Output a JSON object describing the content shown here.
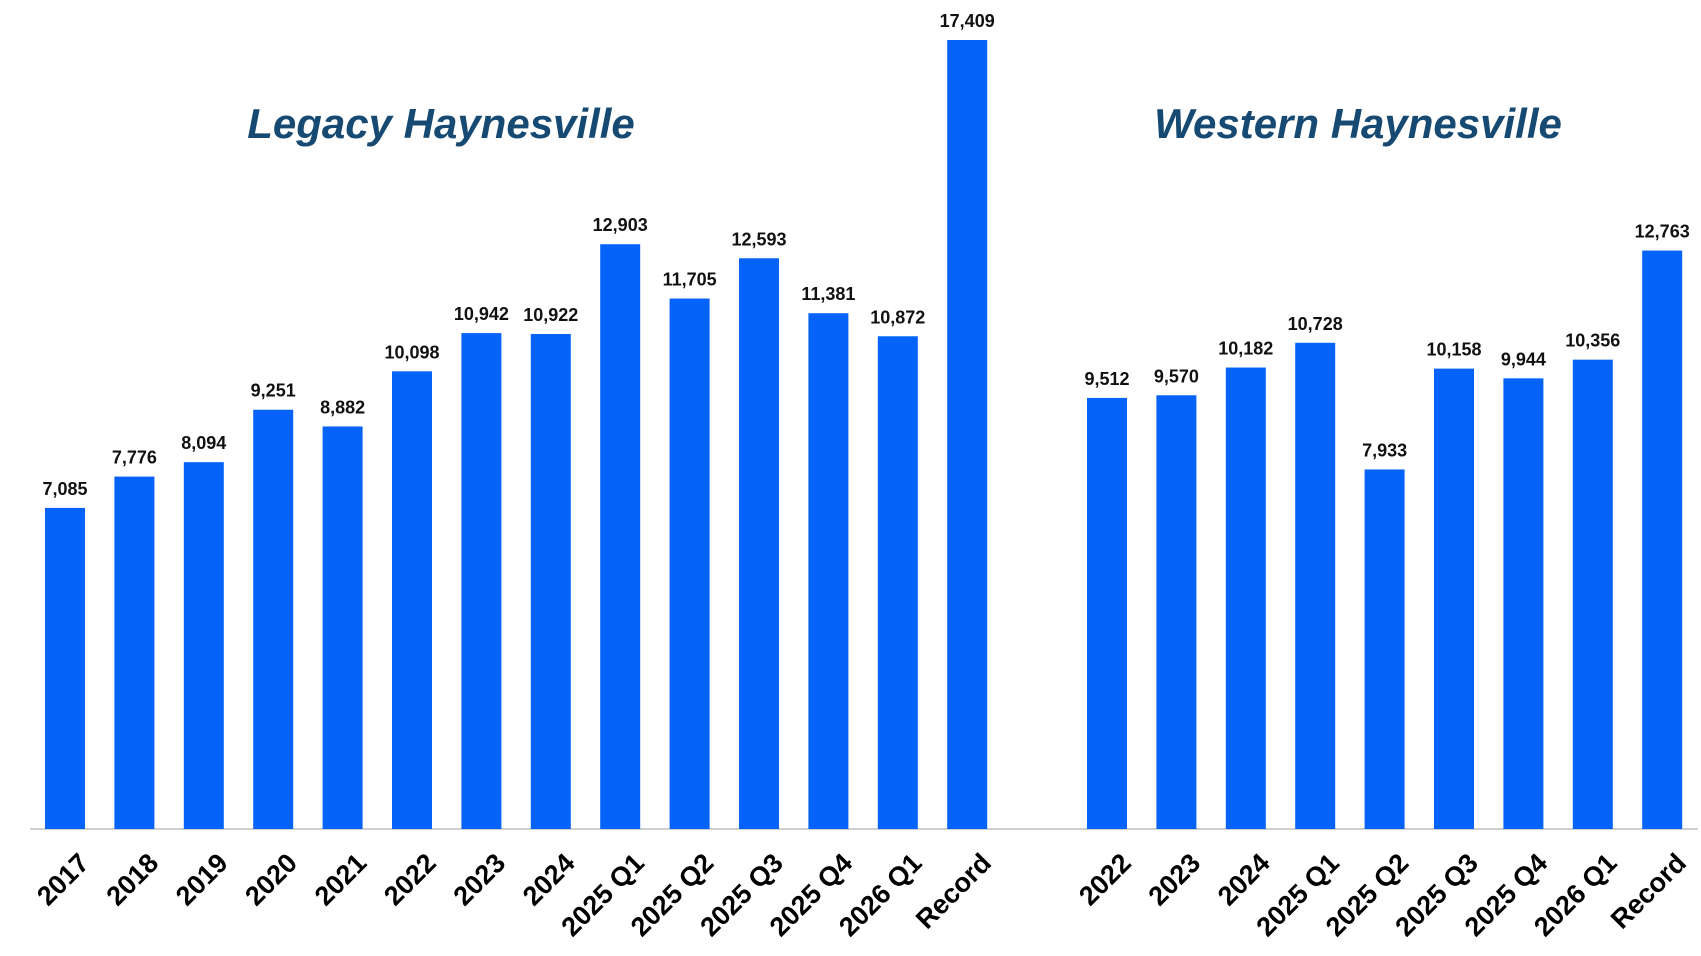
{
  "chart_data": [
    {
      "type": "bar",
      "title": "Legacy Haynesville",
      "color": "#0563fa",
      "categories": [
        "2017",
        "2018",
        "2019",
        "2020",
        "2021",
        "2022",
        "2023",
        "2024",
        "2025 Q1",
        "2025 Q2",
        "2025 Q3",
        "2025 Q4",
        "2026 Q1",
        "Record"
      ],
      "values": [
        7085,
        7776,
        8094,
        9251,
        8882,
        10098,
        10942,
        10922,
        12903,
        11705,
        12593,
        11381,
        10872,
        17409
      ],
      "value_labels": [
        "7,085",
        "7,776",
        "8,094",
        "9,251",
        "8,882",
        "10,098",
        "10,942",
        "10,922",
        "12,903",
        "11,705",
        "12,593",
        "11,381",
        "10,872",
        "17,409"
      ]
    },
    {
      "type": "bar",
      "title": "Western Haynesville",
      "color": "#0563fa",
      "categories": [
        "2022",
        "2023",
        "2024",
        "2025 Q1",
        "2025 Q2",
        "2025 Q3",
        "2025 Q4",
        "2026 Q1",
        "Record"
      ],
      "values": [
        9512,
        9570,
        10182,
        10728,
        7933,
        10158,
        9944,
        10356,
        12763
      ],
      "value_labels": [
        "9,512",
        "9,570",
        "10,182",
        "10,728",
        "7,933",
        "10,158",
        "9,944",
        "10,356",
        "12,763"
      ]
    }
  ]
}
